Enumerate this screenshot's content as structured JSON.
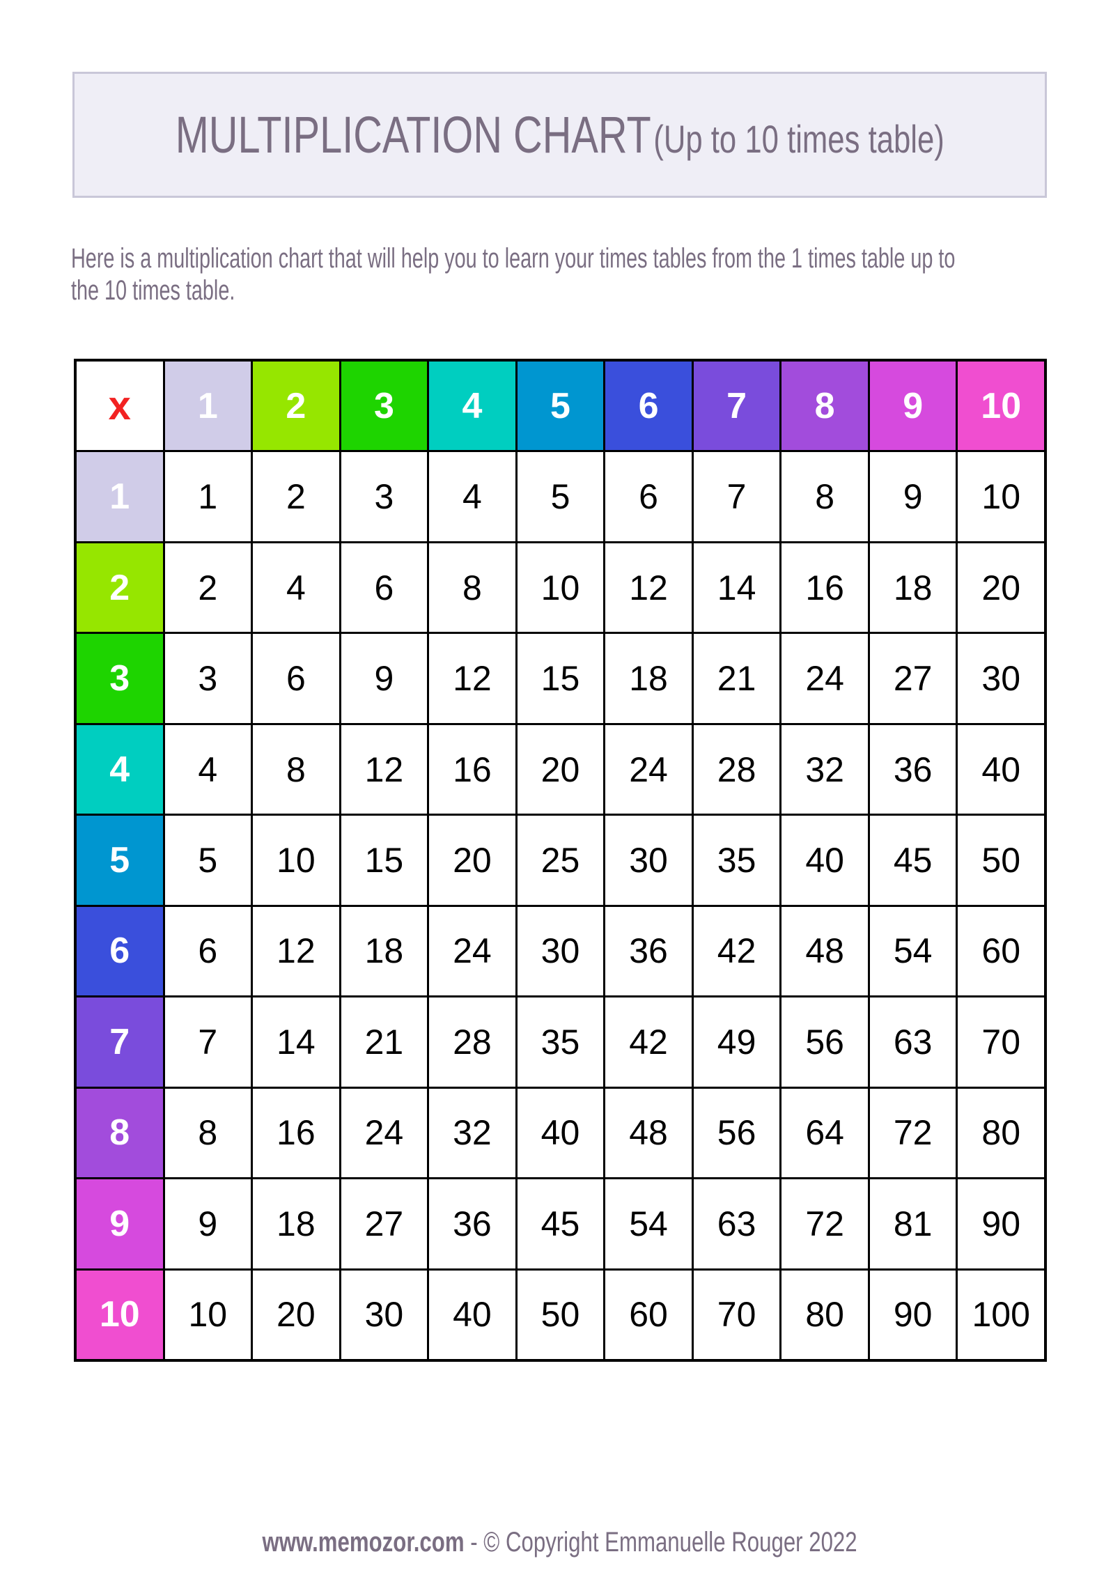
{
  "title": {
    "main": "MULTIPLICATION CHART",
    "sub": "(Up to 10 times table)"
  },
  "intro": "Here is a multiplication chart that will help you to learn your times tables from the 1 times table up to the 10 times table.",
  "table": {
    "corner": "x",
    "corner_color": "#f22222",
    "headers": [
      "1",
      "2",
      "3",
      "4",
      "5",
      "6",
      "7",
      "8",
      "9",
      "10"
    ],
    "header_colors": [
      "#d0cce8",
      "#96e600",
      "#1ed400",
      "#00cec0",
      "#0096d0",
      "#3a4fdc",
      "#7a4cdc",
      "#a24cdc",
      "#d64ade",
      "#f04ed0"
    ],
    "rows": [
      [
        "1",
        "2",
        "3",
        "4",
        "5",
        "6",
        "7",
        "8",
        "9",
        "10"
      ],
      [
        "2",
        "4",
        "6",
        "8",
        "10",
        "12",
        "14",
        "16",
        "18",
        "20"
      ],
      [
        "3",
        "6",
        "9",
        "12",
        "15",
        "18",
        "21",
        "24",
        "27",
        "30"
      ],
      [
        "4",
        "8",
        "12",
        "16",
        "20",
        "24",
        "28",
        "32",
        "36",
        "40"
      ],
      [
        "5",
        "10",
        "15",
        "20",
        "25",
        "30",
        "35",
        "40",
        "45",
        "50"
      ],
      [
        "6",
        "12",
        "18",
        "24",
        "30",
        "36",
        "42",
        "48",
        "54",
        "60"
      ],
      [
        "7",
        "14",
        "21",
        "28",
        "35",
        "42",
        "49",
        "56",
        "63",
        "70"
      ],
      [
        "8",
        "16",
        "24",
        "32",
        "40",
        "48",
        "56",
        "64",
        "72",
        "80"
      ],
      [
        "9",
        "18",
        "27",
        "36",
        "45",
        "54",
        "63",
        "72",
        "81",
        "90"
      ],
      [
        "10",
        "20",
        "30",
        "40",
        "50",
        "60",
        "70",
        "80",
        "90",
        "100"
      ]
    ]
  },
  "footer": {
    "site": "www.memozor.com",
    "separator": " - ",
    "copyright": "© Copyright Emmanuelle Rouger 2022"
  }
}
